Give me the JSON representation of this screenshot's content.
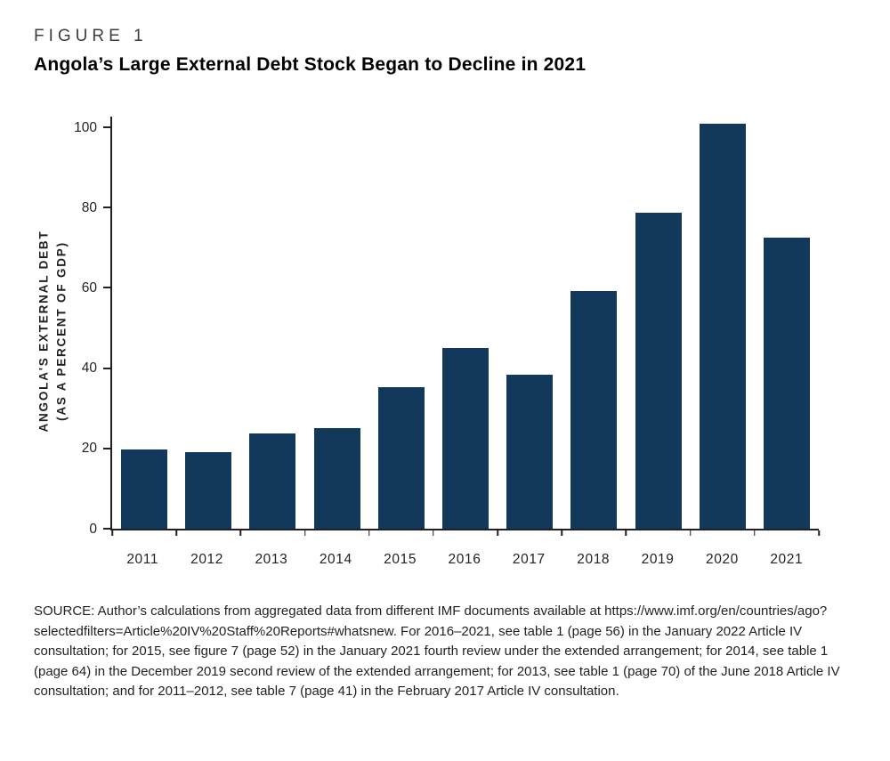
{
  "figure": {
    "label": "FIGURE 1",
    "title": "Angola’s Large External Debt Stock Began to Decline in 2021"
  },
  "chart_data": {
    "type": "bar",
    "title": "Angola’s Large External Debt Stock Began to Decline in 2021",
    "categories": [
      "2011",
      "2012",
      "2013",
      "2014",
      "2015",
      "2016",
      "2017",
      "2018",
      "2019",
      "2020",
      "2021"
    ],
    "values": [
      19.8,
      19.0,
      23.8,
      25.1,
      35.2,
      45.1,
      38.3,
      59.3,
      78.7,
      100.9,
      72.6
    ],
    "xlabel": "",
    "ylabel_line1": "ANGOLA'S EXTERNAL DEBT",
    "ylabel_line2": "(AS A PERCENT OF GDP)",
    "ylim": [
      0,
      100
    ],
    "yticks": [
      0,
      20,
      40,
      60,
      80,
      100
    ],
    "grid": false,
    "legend": false,
    "bar_color": "#12395b",
    "axis_color": "#231f20"
  },
  "source": {
    "text": "SOURCE: Author’s calculations from aggregated data from different IMF documents available at https://www.imf.org/en/countries/ago?selectedfilters=Article%20IV%20Staff%20Reports#whatsnew. For 2016–2021, see table 1 (page 56) in the January 2022 Article IV consultation; for 2015, see figure 7 (page 52) in the January 2021 fourth review under the extended arrangement; for 2014, see table 1 (page 64) in the December 2019 second review of the extended arrangement; for 2013, see table 1 (page 70) of the June 2018 Article IV consultation; and for 2011–2012, see table 7 (page 41) in the February 2017 Article IV consultation."
  }
}
